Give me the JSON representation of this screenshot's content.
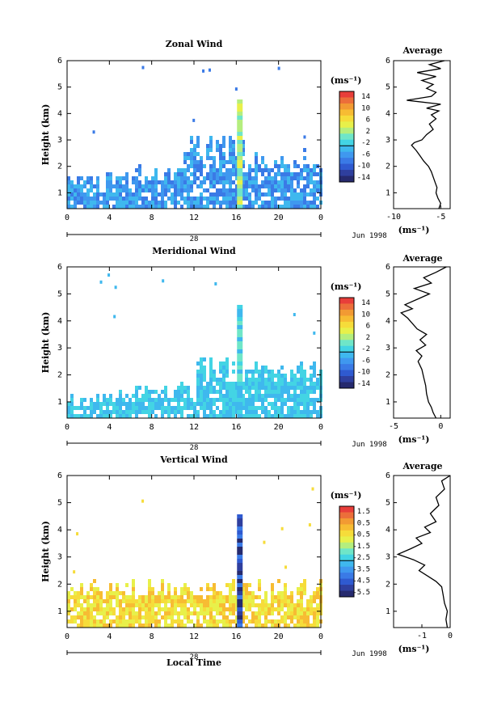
{
  "palette": [
    "#262a6e",
    "#2f3f9e",
    "#2f5ad0",
    "#3a7ae6",
    "#3f98ef",
    "#3fb8ee",
    "#43d4e4",
    "#6fe6c8",
    "#b4ee7e",
    "#e8f04a",
    "#f6dc3a",
    "#f7bc33",
    "#f29a33",
    "#ec6e3a",
    "#e83e3a"
  ],
  "chart_data": [
    {
      "type": "heatmap",
      "title": "Zonal Wind",
      "ylabel": "Height (km)",
      "x_ticks": [
        "0",
        "4",
        "8",
        "12",
        "16",
        "20",
        "0"
      ],
      "y_ticks": [
        "1",
        "2",
        "3",
        "4",
        "5",
        "6"
      ],
      "xlim": [
        0,
        24
      ],
      "ylim": [
        0.4,
        6
      ],
      "date_day": "28",
      "date_tag": "Jun 1998",
      "colorbar": {
        "unit": "(ms⁻¹)",
        "ticks": [
          "14",
          "10",
          "6",
          "2",
          "-2",
          "-6",
          "-10",
          "-14"
        ],
        "range": [
          -16,
          16
        ]
      },
      "average": {
        "title": "Average",
        "unit": "(ms⁻¹)",
        "x_ticks": [
          "-10",
          "-5"
        ],
        "xlim": [
          -10,
          -4
        ],
        "y_ticks": [
          "1",
          "2",
          "3",
          "4",
          "5",
          "6"
        ],
        "profile": [
          [
            -5.2,
            0.4
          ],
          [
            -5.0,
            0.6
          ],
          [
            -5.3,
            0.8
          ],
          [
            -5.5,
            1.0
          ],
          [
            -5.4,
            1.2
          ],
          [
            -5.6,
            1.4
          ],
          [
            -5.8,
            1.6
          ],
          [
            -6.0,
            1.8
          ],
          [
            -6.3,
            2.0
          ],
          [
            -6.8,
            2.2
          ],
          [
            -7.2,
            2.4
          ],
          [
            -7.6,
            2.6
          ],
          [
            -8.1,
            2.8
          ],
          [
            -7.8,
            2.9
          ],
          [
            -7.0,
            3.0
          ],
          [
            -6.5,
            3.2
          ],
          [
            -5.8,
            3.4
          ],
          [
            -6.2,
            3.6
          ],
          [
            -5.5,
            3.8
          ],
          [
            -6.0,
            3.95
          ],
          [
            -5.2,
            4.1
          ],
          [
            -6.5,
            4.2
          ],
          [
            -5.0,
            4.35
          ],
          [
            -8.6,
            4.5
          ],
          [
            -6.0,
            4.65
          ],
          [
            -5.5,
            4.8
          ],
          [
            -6.5,
            4.95
          ],
          [
            -5.8,
            5.1
          ],
          [
            -7.0,
            5.25
          ],
          [
            -5.5,
            5.4
          ],
          [
            -7.5,
            5.55
          ],
          [
            -5.0,
            5.7
          ],
          [
            -6.2,
            5.85
          ],
          [
            -4.6,
            6.0
          ]
        ]
      }
    },
    {
      "type": "heatmap",
      "title": "Meridional Wind",
      "ylabel": "Height (km)",
      "x_ticks": [
        "0",
        "4",
        "8",
        "12",
        "16",
        "20",
        "0"
      ],
      "y_ticks": [
        "1",
        "2",
        "3",
        "4",
        "5",
        "6"
      ],
      "xlim": [
        0,
        24
      ],
      "ylim": [
        0.4,
        6
      ],
      "date_day": "28",
      "date_tag": "Jun 1998",
      "colorbar": {
        "unit": "(ms⁻¹)",
        "ticks": [
          "14",
          "10",
          "6",
          "2",
          "-2",
          "-6",
          "-10",
          "-14"
        ],
        "range": [
          -16,
          16
        ]
      },
      "average": {
        "title": "Average",
        "unit": "(ms⁻¹)",
        "x_ticks": [
          "-5",
          "0"
        ],
        "xlim": [
          -5,
          1
        ],
        "y_ticks": [
          "1",
          "2",
          "3",
          "4",
          "5",
          "6"
        ],
        "profile": [
          [
            -0.5,
            0.4
          ],
          [
            -0.8,
            0.6
          ],
          [
            -1.0,
            0.8
          ],
          [
            -1.3,
            1.0
          ],
          [
            -1.5,
            1.3
          ],
          [
            -1.6,
            1.6
          ],
          [
            -1.8,
            1.9
          ],
          [
            -2.0,
            2.2
          ],
          [
            -2.4,
            2.5
          ],
          [
            -2.0,
            2.7
          ],
          [
            -2.6,
            2.9
          ],
          [
            -1.6,
            3.1
          ],
          [
            -2.2,
            3.3
          ],
          [
            -1.5,
            3.5
          ],
          [
            -2.5,
            3.7
          ],
          [
            -3.0,
            3.9
          ],
          [
            -3.5,
            4.1
          ],
          [
            -4.2,
            4.3
          ],
          [
            -3.0,
            4.45
          ],
          [
            -3.8,
            4.6
          ],
          [
            -2.5,
            4.8
          ],
          [
            -1.2,
            5.0
          ],
          [
            -2.8,
            5.2
          ],
          [
            -1.0,
            5.4
          ],
          [
            -1.8,
            5.6
          ],
          [
            -0.5,
            5.8
          ],
          [
            0.6,
            6.0
          ]
        ]
      }
    },
    {
      "type": "heatmap",
      "title": "Vertical Wind",
      "ylabel": "Height (km)",
      "xlabel": "Local Time",
      "x_ticks": [
        "0",
        "4",
        "8",
        "12",
        "16",
        "20",
        "0"
      ],
      "y_ticks": [
        "1",
        "2",
        "3",
        "4",
        "5",
        "6"
      ],
      "xlim": [
        0,
        24
      ],
      "ylim": [
        0.4,
        6
      ],
      "date_day": "28",
      "date_tag": "Jun 1998",
      "colorbar": {
        "unit": "(ms⁻¹)",
        "ticks": [
          "1.5",
          "0.5",
          "-0.5",
          "-1.5",
          "-2.5",
          "-3.5",
          "-4.5",
          "-5.5"
        ],
        "range": [
          -6,
          2
        ]
      },
      "average": {
        "title": "Average",
        "unit": "(ms⁻¹)",
        "x_ticks": [
          "-1",
          "0"
        ],
        "xlim": [
          -2,
          0
        ],
        "y_ticks": [
          "1",
          "2",
          "3",
          "4",
          "5",
          "6"
        ],
        "profile": [
          [
            -0.1,
            0.4
          ],
          [
            -0.15,
            0.7
          ],
          [
            -0.1,
            1.0
          ],
          [
            -0.2,
            1.3
          ],
          [
            -0.25,
            1.6
          ],
          [
            -0.3,
            1.9
          ],
          [
            -0.5,
            2.1
          ],
          [
            -0.8,
            2.3
          ],
          [
            -1.1,
            2.5
          ],
          [
            -0.9,
            2.7
          ],
          [
            -1.3,
            2.9
          ],
          [
            -1.85,
            3.1
          ],
          [
            -1.4,
            3.3
          ],
          [
            -1.0,
            3.5
          ],
          [
            -1.2,
            3.7
          ],
          [
            -0.7,
            3.9
          ],
          [
            -0.9,
            4.1
          ],
          [
            -0.5,
            4.3
          ],
          [
            -0.7,
            4.6
          ],
          [
            -0.4,
            4.9
          ],
          [
            -0.5,
            5.2
          ],
          [
            -0.2,
            5.5
          ],
          [
            -0.3,
            5.8
          ],
          [
            0.0,
            6.0
          ]
        ]
      }
    }
  ]
}
